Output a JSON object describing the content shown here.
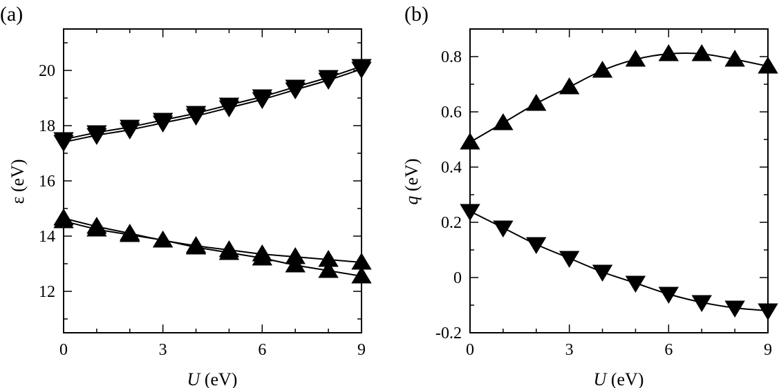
{
  "chart_data": [
    {
      "type": "line",
      "panel_label": "(a)",
      "xlabel_italic": "U",
      "xlabel_rest": " (eV)",
      "ylabel": "ε (eV)",
      "xlim": [
        0,
        9
      ],
      "ylim": [
        10.5,
        21.5
      ],
      "xticks": [
        0,
        3,
        6,
        9
      ],
      "xtick_labels": [
        "0",
        "3",
        "6",
        "9"
      ],
      "xminor": [
        1,
        2,
        4,
        5,
        7,
        8
      ],
      "yticks": [
        12,
        14,
        16,
        18,
        20
      ],
      "ytick_labels": [
        "12",
        "14",
        "16",
        "18",
        "20"
      ],
      "yminor": [
        11,
        13,
        15,
        17,
        19,
        21
      ],
      "x": [
        0,
        1,
        2,
        3,
        4,
        5,
        6,
        7,
        8,
        9
      ],
      "series": [
        {
          "name": "down-1",
          "marker": "down-triangle",
          "values": [
            17.5,
            17.75,
            17.95,
            18.2,
            18.45,
            18.75,
            19.05,
            19.4,
            19.75,
            20.15
          ]
        },
        {
          "name": "down-2",
          "marker": "down-triangle",
          "values": [
            17.4,
            17.65,
            17.85,
            18.1,
            18.35,
            18.65,
            18.95,
            19.3,
            19.65,
            20.05
          ]
        },
        {
          "name": "up-1",
          "marker": "up-triangle",
          "values": [
            14.65,
            14.35,
            14.1,
            13.85,
            13.65,
            13.5,
            13.35,
            13.25,
            13.15,
            13.05
          ]
        },
        {
          "name": "up-2",
          "marker": "up-triangle",
          "values": [
            14.55,
            14.25,
            14.05,
            13.85,
            13.6,
            13.4,
            13.2,
            12.95,
            12.75,
            12.55
          ]
        }
      ]
    },
    {
      "type": "line",
      "panel_label": "(b)",
      "xlabel_italic": "U",
      "xlabel_rest": " (eV)",
      "ylabel_italic": "q",
      "ylabel_rest": " (eV)",
      "xlim": [
        0,
        9
      ],
      "ylim": [
        -0.2,
        0.9
      ],
      "xticks": [
        0,
        3,
        6,
        9
      ],
      "xtick_labels": [
        "0",
        "3",
        "6",
        "9"
      ],
      "xminor": [
        1,
        2,
        4,
        5,
        7,
        8
      ],
      "yticks": [
        -0.2,
        0,
        0.2,
        0.4,
        0.6,
        0.8
      ],
      "ytick_labels": [
        "-0.2",
        "0",
        "0.2",
        "0.4",
        "0.6",
        "0.8"
      ],
      "yminor": [
        -0.1,
        0.1,
        0.3,
        0.5,
        0.7
      ],
      "x": [
        0,
        1,
        2,
        3,
        4,
        5,
        6,
        7,
        8,
        9
      ],
      "series": [
        {
          "name": "up",
          "marker": "up-triangle",
          "values": [
            0.49,
            0.56,
            0.63,
            0.69,
            0.75,
            0.79,
            0.81,
            0.81,
            0.79,
            0.765
          ]
        },
        {
          "name": "down",
          "marker": "down-triangle",
          "values": [
            0.24,
            0.18,
            0.12,
            0.07,
            0.02,
            -0.02,
            -0.06,
            -0.09,
            -0.11,
            -0.12
          ]
        }
      ]
    }
  ]
}
